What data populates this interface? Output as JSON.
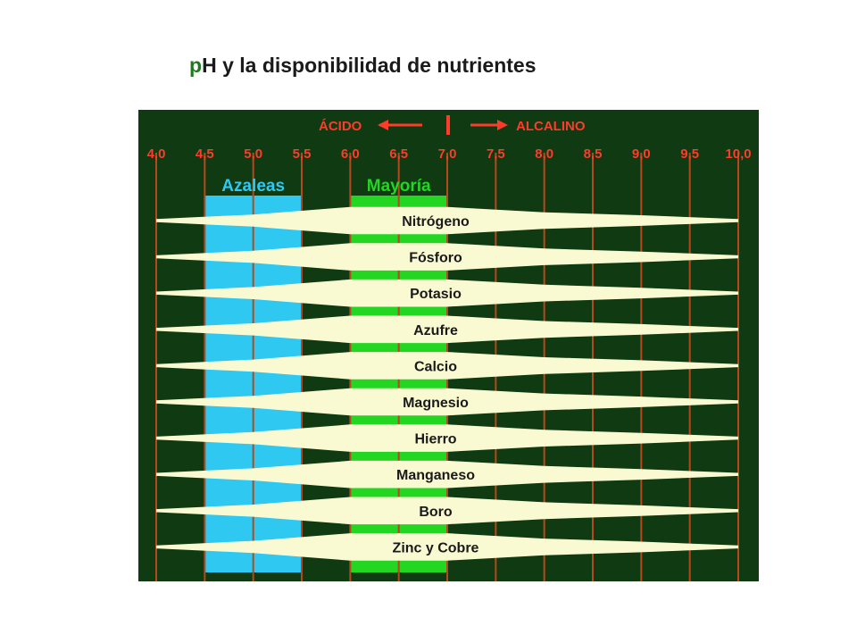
{
  "slide": {
    "title_first_letter": "p",
    "title_rest": "H y la disponibilidad de nutrientes"
  },
  "chart": {
    "header_acid": "ÁCIDO",
    "header_alkaline": "ALCALINO",
    "ph_ticks": [
      "4,0",
      "4,5",
      "5,0",
      "5,5",
      "6,0",
      "6,5",
      "7,0",
      "7,5",
      "8,0",
      "8,5",
      "9,0",
      "9,5",
      "10,0"
    ],
    "ph_values": [
      4.0,
      4.5,
      5.0,
      5.5,
      6.0,
      6.5,
      7.0,
      7.5,
      8.0,
      8.5,
      9.0,
      9.5,
      10.0
    ],
    "ranges": [
      {
        "label": "Azaleas",
        "ph_from": 4.5,
        "ph_to": 5.5,
        "color": "#2ec8f0",
        "label_color": "#2ec8f0"
      },
      {
        "label": "Mayoría",
        "ph_from": 6.0,
        "ph_to": 7.0,
        "color": "#22d622",
        "label_color": "#22d622"
      }
    ],
    "nutrients": [
      {
        "label": "Nitrógeno",
        "ph": [
          4.0,
          5.0,
          6.0,
          7.0,
          8.0,
          9.0,
          10.0
        ],
        "availability": [
          0.1,
          0.4,
          0.9,
          0.9,
          0.55,
          0.35,
          0.1
        ]
      },
      {
        "label": "Fósforo",
        "ph": [
          4.0,
          5.0,
          6.0,
          7.0,
          8.0,
          9.0,
          10.0
        ],
        "availability": [
          0.1,
          0.4,
          0.9,
          0.9,
          0.55,
          0.35,
          0.1
        ]
      },
      {
        "label": "Potasio",
        "ph": [
          4.0,
          5.0,
          6.0,
          7.0,
          8.0,
          9.0,
          10.0
        ],
        "availability": [
          0.1,
          0.4,
          0.9,
          0.9,
          0.55,
          0.35,
          0.1
        ]
      },
      {
        "label": "Azufre",
        "ph": [
          4.0,
          5.0,
          6.0,
          7.0,
          8.0,
          9.0,
          10.0
        ],
        "availability": [
          0.1,
          0.4,
          0.9,
          0.9,
          0.55,
          0.35,
          0.1
        ]
      },
      {
        "label": "Calcio",
        "ph": [
          4.0,
          5.0,
          6.0,
          7.0,
          8.0,
          9.0,
          10.0
        ],
        "availability": [
          0.1,
          0.4,
          0.9,
          0.9,
          0.55,
          0.35,
          0.1
        ]
      },
      {
        "label": "Magnesio",
        "ph": [
          4.0,
          5.0,
          6.0,
          7.0,
          8.0,
          9.0,
          10.0
        ],
        "availability": [
          0.1,
          0.4,
          0.9,
          0.9,
          0.55,
          0.35,
          0.1
        ]
      },
      {
        "label": "Hierro",
        "ph": [
          4.0,
          5.0,
          6.0,
          7.0,
          8.0,
          9.0,
          10.0
        ],
        "availability": [
          0.1,
          0.4,
          0.9,
          0.9,
          0.55,
          0.35,
          0.1
        ]
      },
      {
        "label": "Manganeso",
        "ph": [
          4.0,
          5.0,
          6.0,
          7.0,
          8.0,
          9.0,
          10.0
        ],
        "availability": [
          0.1,
          0.4,
          0.9,
          0.9,
          0.55,
          0.35,
          0.1
        ]
      },
      {
        "label": "Boro",
        "ph": [
          4.0,
          5.0,
          6.0,
          7.0,
          8.0,
          9.0,
          10.0
        ],
        "availability": [
          0.1,
          0.4,
          0.9,
          0.9,
          0.55,
          0.35,
          0.1
        ]
      },
      {
        "label": "Zinc y Cobre",
        "ph": [
          4.0,
          5.0,
          6.0,
          7.0,
          8.0,
          9.0,
          10.0
        ],
        "availability": [
          0.1,
          0.4,
          0.9,
          0.9,
          0.55,
          0.35,
          0.1
        ]
      }
    ],
    "colors": {
      "background": "#0f3a12",
      "gridline": "#b5481c",
      "tick_text": "#ff3b2b",
      "header_text": "#ff3b2b",
      "band": "#fafad2",
      "band_text": "#1a1a1a"
    }
  }
}
